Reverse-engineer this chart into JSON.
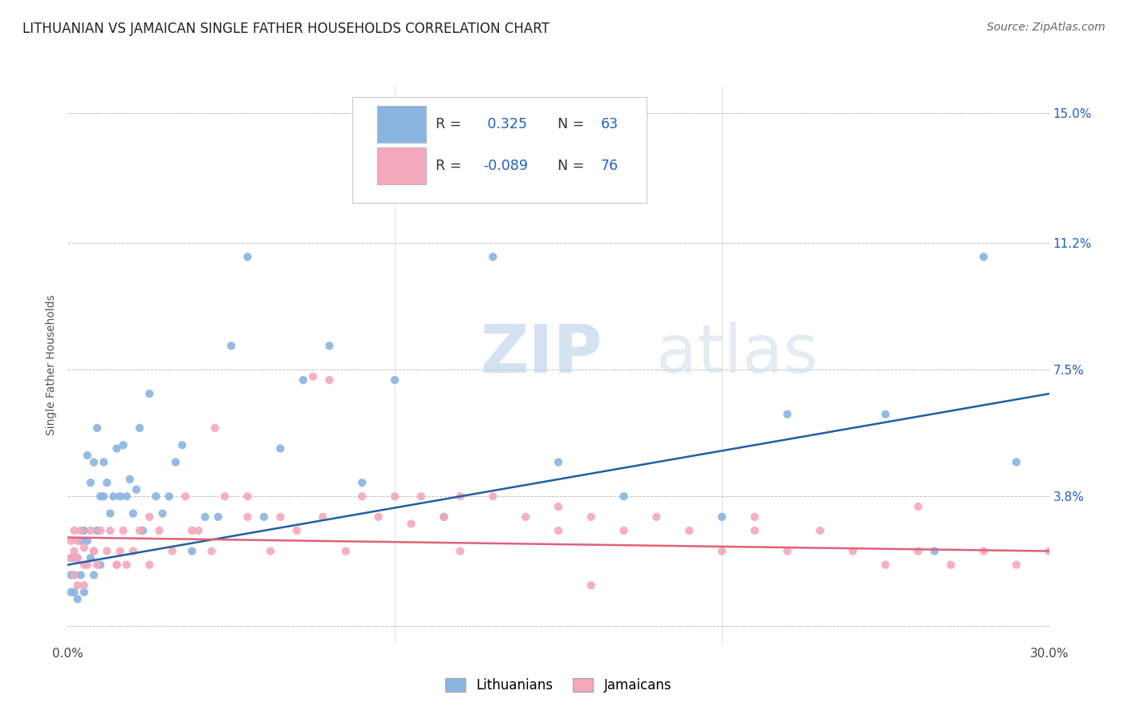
{
  "title": "LITHUANIAN VS JAMAICAN SINGLE FATHER HOUSEHOLDS CORRELATION CHART",
  "source": "Source: ZipAtlas.com",
  "ylabel": "Single Father Households",
  "legend_label1": "Lithuanians",
  "legend_label2": "Jamaicans",
  "r1": 0.325,
  "n1": 63,
  "r2": -0.089,
  "n2": 76,
  "color_blue": "#8ab4e0",
  "color_pink": "#f4a8bc",
  "color_trend_blue": "#2060a0",
  "color_trend_pink": "#e0607a",
  "color_text_blue": "#2060c0",
  "color_grid": "#c0c0c0",
  "yticks": [
    0.0,
    0.038,
    0.075,
    0.112,
    0.15
  ],
  "ytick_labels": [
    "",
    "3.8%",
    "7.5%",
    "11.2%",
    "15.0%"
  ],
  "xlim": [
    0.0,
    0.3
  ],
  "ylim": [
    -0.005,
    0.158
  ],
  "blue_x": [
    0.001,
    0.001,
    0.001,
    0.002,
    0.002,
    0.002,
    0.003,
    0.003,
    0.004,
    0.004,
    0.005,
    0.005,
    0.006,
    0.006,
    0.007,
    0.007,
    0.008,
    0.008,
    0.009,
    0.009,
    0.01,
    0.01,
    0.011,
    0.011,
    0.012,
    0.013,
    0.014,
    0.015,
    0.016,
    0.017,
    0.018,
    0.019,
    0.02,
    0.021,
    0.022,
    0.023,
    0.025,
    0.027,
    0.029,
    0.031,
    0.033,
    0.035,
    0.038,
    0.042,
    0.046,
    0.05,
    0.055,
    0.06,
    0.065,
    0.072,
    0.08,
    0.09,
    0.1,
    0.115,
    0.13,
    0.15,
    0.17,
    0.2,
    0.22,
    0.25,
    0.265,
    0.28,
    0.29
  ],
  "blue_y": [
    0.01,
    0.015,
    0.02,
    0.01,
    0.015,
    0.02,
    0.008,
    0.02,
    0.015,
    0.025,
    0.01,
    0.028,
    0.025,
    0.05,
    0.02,
    0.042,
    0.015,
    0.048,
    0.028,
    0.058,
    0.018,
    0.038,
    0.038,
    0.048,
    0.042,
    0.033,
    0.038,
    0.052,
    0.038,
    0.053,
    0.038,
    0.043,
    0.033,
    0.04,
    0.058,
    0.028,
    0.068,
    0.038,
    0.033,
    0.038,
    0.048,
    0.053,
    0.022,
    0.032,
    0.032,
    0.082,
    0.108,
    0.032,
    0.052,
    0.072,
    0.082,
    0.042,
    0.072,
    0.032,
    0.108,
    0.048,
    0.038,
    0.032,
    0.062,
    0.062,
    0.022,
    0.108,
    0.048
  ],
  "pink_x": [
    0.001,
    0.001,
    0.002,
    0.002,
    0.003,
    0.003,
    0.004,
    0.005,
    0.005,
    0.006,
    0.007,
    0.008,
    0.009,
    0.01,
    0.012,
    0.013,
    0.015,
    0.016,
    0.017,
    0.018,
    0.02,
    0.022,
    0.025,
    0.028,
    0.032,
    0.036,
    0.04,
    0.044,
    0.048,
    0.055,
    0.062,
    0.07,
    0.078,
    0.085,
    0.09,
    0.095,
    0.1,
    0.108,
    0.115,
    0.12,
    0.13,
    0.14,
    0.15,
    0.16,
    0.17,
    0.18,
    0.19,
    0.2,
    0.21,
    0.22,
    0.23,
    0.24,
    0.25,
    0.26,
    0.27,
    0.28,
    0.29,
    0.3,
    0.21,
    0.16,
    0.12,
    0.08,
    0.055,
    0.038,
    0.025,
    0.015,
    0.008,
    0.005,
    0.003,
    0.002,
    0.045,
    0.065,
    0.075,
    0.105,
    0.15,
    0.26
  ],
  "pink_y": [
    0.02,
    0.025,
    0.015,
    0.028,
    0.02,
    0.025,
    0.028,
    0.012,
    0.023,
    0.018,
    0.028,
    0.022,
    0.018,
    0.028,
    0.022,
    0.028,
    0.018,
    0.022,
    0.028,
    0.018,
    0.022,
    0.028,
    0.032,
    0.028,
    0.022,
    0.038,
    0.028,
    0.022,
    0.038,
    0.032,
    0.022,
    0.028,
    0.032,
    0.022,
    0.038,
    0.032,
    0.038,
    0.038,
    0.032,
    0.038,
    0.038,
    0.032,
    0.028,
    0.032,
    0.028,
    0.032,
    0.028,
    0.022,
    0.028,
    0.022,
    0.028,
    0.022,
    0.018,
    0.022,
    0.018,
    0.022,
    0.018,
    0.022,
    0.032,
    0.012,
    0.022,
    0.072,
    0.038,
    0.028,
    0.018,
    0.018,
    0.022,
    0.018,
    0.012,
    0.022,
    0.058,
    0.032,
    0.073,
    0.03,
    0.035,
    0.035
  ],
  "blue_trend_x": [
    0.0,
    0.3
  ],
  "blue_trend_y": [
    0.018,
    0.068
  ],
  "pink_trend_x": [
    0.0,
    0.3
  ],
  "pink_trend_y": [
    0.026,
    0.022
  ],
  "watermark_zip": "ZIP",
  "watermark_atlas": "atlas",
  "background_color": "#ffffff",
  "title_fontsize": 12,
  "axis_label_fontsize": 10,
  "tick_fontsize": 11,
  "legend_fontsize": 12,
  "source_fontsize": 10
}
